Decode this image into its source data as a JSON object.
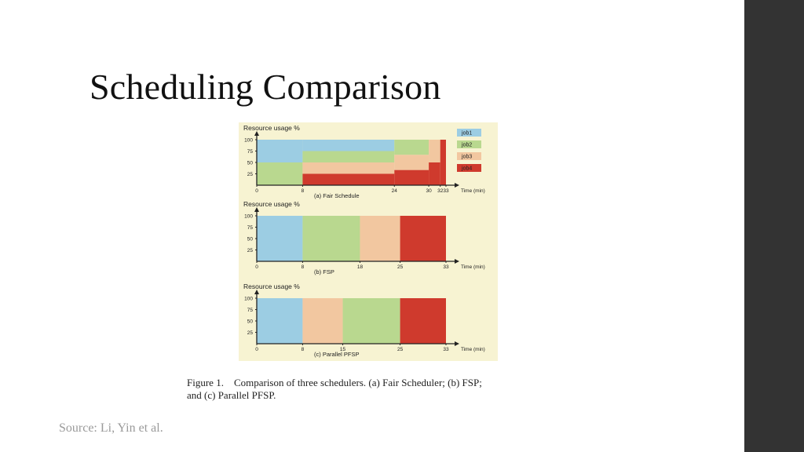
{
  "slide": {
    "title": "Scheduling Comparison",
    "source": "Source: Li, Yin et al."
  },
  "caption": {
    "line1": "Figure 1.    Comparison of three schedulers. (a) Fair Scheduler; (b) FSP;",
    "line2": "and (c) Parallel PFSP."
  },
  "colors": {
    "job1": "#9ccde3",
    "job2": "#b9d88f",
    "job3": "#f2c7a0",
    "job4": "#cf3a2d",
    "figure_bg": "#f7f3d2",
    "sidebar": "#333333"
  },
  "chart_data": [
    {
      "type": "bar",
      "panel_label": "(a) Fair Schedule",
      "ylabel": "Resource usage %",
      "xlabel": "Time (min)",
      "yticks": [
        25,
        50,
        75,
        100
      ],
      "xticks": [
        0,
        8,
        24,
        30,
        32,
        33
      ],
      "xlim": [
        0,
        33
      ],
      "ylim": [
        0,
        100
      ],
      "legend": [
        "job1",
        "job2",
        "job3",
        "job4"
      ],
      "legend_position": "top-right",
      "segments": [
        {
          "job": "job1",
          "start": 0,
          "end": 8,
          "low": 50,
          "high": 100
        },
        {
          "job": "job2",
          "start": 0,
          "end": 8,
          "low": 0,
          "high": 50
        },
        {
          "job": "job1",
          "start": 8,
          "end": 24,
          "low": 75,
          "high": 100
        },
        {
          "job": "job2",
          "start": 8,
          "end": 24,
          "low": 50,
          "high": 75
        },
        {
          "job": "job3",
          "start": 8,
          "end": 24,
          "low": 25,
          "high": 50
        },
        {
          "job": "job4",
          "start": 8,
          "end": 24,
          "low": 0,
          "high": 25
        },
        {
          "job": "job2",
          "start": 24,
          "end": 30,
          "low": 66.7,
          "high": 100
        },
        {
          "job": "job3",
          "start": 24,
          "end": 30,
          "low": 33.3,
          "high": 66.7
        },
        {
          "job": "job4",
          "start": 24,
          "end": 30,
          "low": 0,
          "high": 33.3
        },
        {
          "job": "job3",
          "start": 30,
          "end": 32,
          "low": 50,
          "high": 100
        },
        {
          "job": "job4",
          "start": 30,
          "end": 32,
          "low": 0,
          "high": 50
        },
        {
          "job": "job4",
          "start": 32,
          "end": 33,
          "low": 0,
          "high": 100
        }
      ]
    },
    {
      "type": "bar",
      "panel_label": "(b) FSP",
      "ylabel": "Resource usage %",
      "xlabel": "Time (min)",
      "yticks": [
        25,
        50,
        75,
        100
      ],
      "xticks": [
        0,
        8,
        18,
        25,
        33
      ],
      "xlim": [
        0,
        33
      ],
      "ylim": [
        0,
        100
      ],
      "segments": [
        {
          "job": "job1",
          "start": 0,
          "end": 8,
          "low": 0,
          "high": 100
        },
        {
          "job": "job2",
          "start": 8,
          "end": 18,
          "low": 0,
          "high": 100
        },
        {
          "job": "job3",
          "start": 18,
          "end": 25,
          "low": 0,
          "high": 100
        },
        {
          "job": "job4",
          "start": 25,
          "end": 33,
          "low": 0,
          "high": 100
        }
      ]
    },
    {
      "type": "bar",
      "panel_label": "(c) Parallel PFSP",
      "ylabel": "Resource usage %",
      "xlabel": "Time (min)",
      "yticks": [
        25,
        50,
        75,
        100
      ],
      "xticks": [
        0,
        8,
        15,
        25,
        33
      ],
      "xlim": [
        0,
        33
      ],
      "ylim": [
        0,
        100
      ],
      "segments": [
        {
          "job": "job1",
          "start": 0,
          "end": 8,
          "low": 0,
          "high": 100
        },
        {
          "job": "job3",
          "start": 8,
          "end": 15,
          "low": 0,
          "high": 100
        },
        {
          "job": "job2",
          "start": 15,
          "end": 25,
          "low": 0,
          "high": 100
        },
        {
          "job": "job4",
          "start": 25,
          "end": 33,
          "low": 0,
          "high": 100
        }
      ]
    }
  ]
}
